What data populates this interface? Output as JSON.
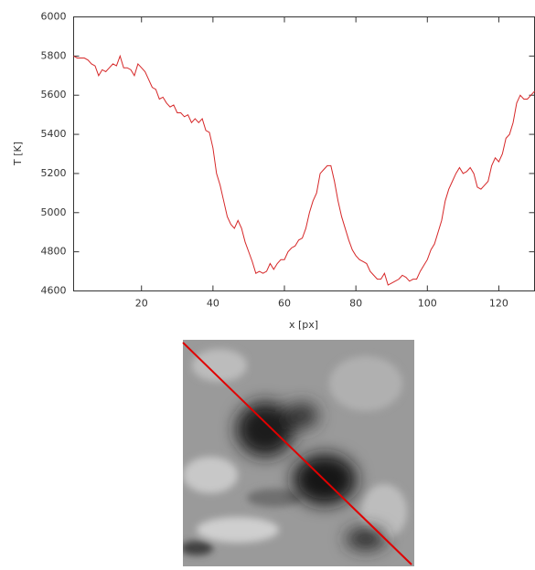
{
  "chart_data": {
    "type": "line",
    "x_label": "x [px]",
    "y_label": "T [K]",
    "x": [
      1,
      2,
      3,
      4,
      5,
      6,
      7,
      8,
      9,
      10,
      11,
      12,
      13,
      14,
      15,
      16,
      17,
      18,
      19,
      20,
      21,
      22,
      23,
      24,
      25,
      26,
      27,
      28,
      29,
      30,
      31,
      32,
      33,
      34,
      35,
      36,
      37,
      38,
      39,
      40,
      41,
      42,
      43,
      44,
      45,
      46,
      47,
      48,
      49,
      50,
      51,
      52,
      53,
      54,
      55,
      56,
      57,
      58,
      59,
      60,
      61,
      62,
      63,
      64,
      65,
      66,
      67,
      68,
      69,
      70,
      71,
      72,
      73,
      74,
      75,
      76,
      77,
      78,
      79,
      80,
      81,
      82,
      83,
      84,
      85,
      86,
      87,
      88,
      89,
      90,
      91,
      92,
      93,
      94,
      95,
      96,
      97,
      98,
      99,
      100,
      101,
      102,
      103,
      104,
      105,
      106,
      107,
      108,
      109,
      110,
      111,
      112,
      113,
      114,
      115,
      116,
      117,
      118,
      119,
      120,
      121,
      122,
      123,
      124,
      125,
      126,
      127,
      128,
      129,
      130
    ],
    "values": [
      5800,
      5790,
      5790,
      5790,
      5780,
      5760,
      5750,
      5700,
      5730,
      5720,
      5740,
      5760,
      5750,
      5800,
      5740,
      5740,
      5730,
      5700,
      5760,
      5740,
      5720,
      5680,
      5640,
      5630,
      5580,
      5590,
      5560,
      5540,
      5550,
      5510,
      5510,
      5490,
      5500,
      5460,
      5480,
      5460,
      5480,
      5420,
      5410,
      5330,
      5200,
      5140,
      5060,
      4980,
      4940,
      4920,
      4960,
      4920,
      4850,
      4800,
      4750,
      4690,
      4700,
      4690,
      4700,
      4740,
      4710,
      4740,
      4760,
      4760,
      4800,
      4820,
      4830,
      4860,
      4870,
      4920,
      5000,
      5060,
      5100,
      5200,
      5220,
      5240,
      5240,
      5160,
      5060,
      4980,
      4920,
      4860,
      4810,
      4780,
      4760,
      4750,
      4740,
      4700,
      4680,
      4660,
      4660,
      4690,
      4630,
      4640,
      4650,
      4660,
      4680,
      4670,
      4650,
      4660,
      4660,
      4700,
      4730,
      4760,
      4810,
      4840,
      4900,
      4960,
      5060,
      5120,
      5160,
      5200,
      5230,
      5200,
      5210,
      5230,
      5200,
      5130,
      5120,
      5140,
      5160,
      5240,
      5280,
      5260,
      5300,
      5380,
      5400,
      5460,
      5560,
      5600,
      5580,
      5580,
      5600,
      5620
    ],
    "color": "#d62728",
    "xlim": [
      1,
      130
    ],
    "ylim": [
      4600,
      6000
    ],
    "xticks": [
      20,
      40,
      60,
      80,
      100,
      120
    ],
    "yticks": [
      4600,
      4800,
      5000,
      5200,
      5400,
      5600,
      5800,
      6000
    ]
  }
}
